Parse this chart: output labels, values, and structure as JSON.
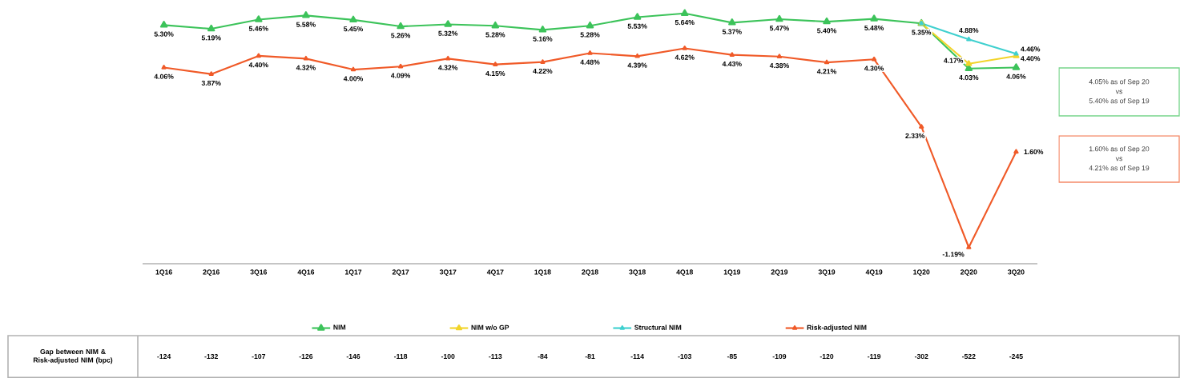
{
  "chart_data": {
    "type": "line",
    "categories": [
      "1Q16",
      "2Q16",
      "3Q16",
      "4Q16",
      "1Q17",
      "2Q17",
      "3Q17",
      "4Q17",
      "1Q18",
      "2Q18",
      "3Q18",
      "4Q18",
      "1Q19",
      "2Q19",
      "3Q19",
      "4Q19",
      "1Q20",
      "2Q20",
      "3Q20"
    ],
    "series": [
      {
        "name": "NIM",
        "color": "#3cc35a",
        "values": [
          5.3,
          5.19,
          5.46,
          5.58,
          5.45,
          5.26,
          5.32,
          5.28,
          5.16,
          5.28,
          5.53,
          5.64,
          5.37,
          5.47,
          5.4,
          5.48,
          5.35,
          4.03,
          4.06
        ],
        "value_labels": [
          "5.30%",
          "5.19%",
          "5.46%",
          "5.58%",
          "5.45%",
          "5.26%",
          "5.32%",
          "5.28%",
          "5.16%",
          "5.28%",
          "5.53%",
          "5.64%",
          "5.37%",
          "5.47%",
          "5.40%",
          "5.48%",
          "5.35%",
          "4.03%",
          "4.06%"
        ]
      },
      {
        "name": "NIM w/o GP",
        "color": "#f2d42a",
        "values": [
          null,
          null,
          null,
          null,
          null,
          null,
          null,
          null,
          null,
          null,
          null,
          null,
          null,
          null,
          null,
          null,
          5.35,
          4.17,
          4.4
        ],
        "value_labels": [
          null,
          null,
          null,
          null,
          null,
          null,
          null,
          null,
          null,
          null,
          null,
          null,
          null,
          null,
          null,
          null,
          null,
          "4.17%",
          "4.40%"
        ]
      },
      {
        "name": "Structural NIM",
        "color": "#3fd0cf",
        "values": [
          null,
          null,
          null,
          null,
          null,
          null,
          null,
          null,
          null,
          null,
          null,
          null,
          null,
          null,
          null,
          null,
          5.35,
          4.88,
          4.46
        ],
        "value_labels": [
          null,
          null,
          null,
          null,
          null,
          null,
          null,
          null,
          null,
          null,
          null,
          null,
          null,
          null,
          null,
          null,
          null,
          "4.88%",
          "4.46%"
        ]
      },
      {
        "name": "Risk-adjusted NIM",
        "color": "#f05a28",
        "values": [
          4.06,
          3.87,
          4.4,
          4.32,
          4.0,
          4.09,
          4.32,
          4.15,
          4.22,
          4.48,
          4.39,
          4.62,
          4.43,
          4.38,
          4.21,
          4.3,
          2.33,
          -1.19,
          1.6
        ],
        "value_labels": [
          "4.06%",
          "3.87%",
          "4.40%",
          "4.32%",
          "4.00%",
          "4.09%",
          "4.32%",
          "4.15%",
          "4.22%",
          "4.48%",
          "4.39%",
          "4.62%",
          "4.43%",
          "4.38%",
          "4.21%",
          "4.30%",
          "2.33%",
          "-1.19%",
          "1.60%"
        ]
      }
    ],
    "marker": "triangle",
    "legend": "bottom",
    "annotations": [
      "4.05% as of Sep 20",
      "vs",
      "5.40% as of Sep 19",
      "1.60% as of Sep 20",
      "vs",
      "4.21% as of Sep 19",
      "Gap between NIM & Risk-adjusted NIM (bpc)",
      "-124",
      "-132",
      "-107",
      "-126",
      "-146",
      "-118",
      "-100",
      "-113",
      "-84",
      "-81",
      "-114",
      "-103",
      "-85",
      "-109",
      "-120",
      "-119",
      "-302",
      "-522",
      "-245"
    ]
  }
}
